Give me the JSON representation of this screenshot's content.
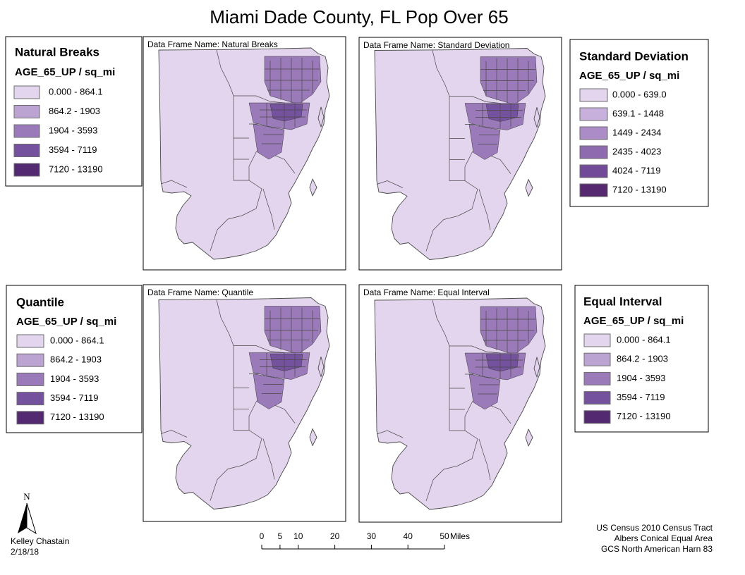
{
  "title": "Miami Dade County, FL Pop Over 65",
  "data_frames": [
    {
      "label": "Data Frame Name: Natural Breaks"
    },
    {
      "label": "Data Frame Name: Standard Deviation"
    },
    {
      "label": "Data Frame Name: Quantile"
    },
    {
      "label": "Data Frame Name: Equal Interval"
    }
  ],
  "legends": [
    {
      "title": "Natural Breaks",
      "field": "AGE_65_UP / sq_mi",
      "classes": [
        {
          "label": "0.000 - 864.1",
          "color": "#e3d5ee"
        },
        {
          "label": "864.2 - 1903",
          "color": "#bca4d2"
        },
        {
          "label": "1904 - 3593",
          "color": "#9a7ab8"
        },
        {
          "label": "3594 - 7119",
          "color": "#75529d"
        },
        {
          "label": "7120 - 13190",
          "color": "#532a72"
        }
      ]
    },
    {
      "title": "Standard Deviation",
      "field": "AGE_65_UP / sq_mi",
      "classes": [
        {
          "label": "0.000 - 639.0",
          "color": "#e3d5ee"
        },
        {
          "label": "639.1 - 1448",
          "color": "#c7b0dc"
        },
        {
          "label": "1449 - 2434",
          "color": "#ac8cc6"
        },
        {
          "label": "2435 - 4023",
          "color": "#8e6bae"
        },
        {
          "label": "4024 - 7119",
          "color": "#714a98"
        },
        {
          "label": "7120 - 13190",
          "color": "#55286f"
        }
      ]
    },
    {
      "title": "Quantile",
      "field": "AGE_65_UP / sq_mi",
      "classes": [
        {
          "label": "0.000 - 864.1",
          "color": "#e3d5ee"
        },
        {
          "label": "864.2 - 1903",
          "color": "#bca4d2"
        },
        {
          "label": "1904 - 3593",
          "color": "#9a7ab8"
        },
        {
          "label": "3594 - 7119",
          "color": "#75529d"
        },
        {
          "label": "7120 - 13190",
          "color": "#532a72"
        }
      ]
    },
    {
      "title": "Equal Interval",
      "field": "AGE_65_UP / sq_mi",
      "classes": [
        {
          "label": "0.000 - 864.1",
          "color": "#e3d5ee"
        },
        {
          "label": "864.2 - 1903",
          "color": "#bca4d2"
        },
        {
          "label": "1904 - 3593",
          "color": "#9a7ab8"
        },
        {
          "label": "3594 - 7119",
          "color": "#75529d"
        },
        {
          "label": "7120 - 13190",
          "color": "#532a72"
        }
      ]
    }
  ],
  "north_arrow": "N",
  "author": "Kelley Chastain",
  "date": "2/18/18",
  "scale_bar": {
    "ticks": [
      0,
      5,
      10,
      20,
      30,
      40,
      50
    ],
    "unit": "Miles"
  },
  "notes": [
    "US Census 2010 Census Tract",
    "Albers Conical Equal Area",
    "GCS North American Harn 83"
  ]
}
